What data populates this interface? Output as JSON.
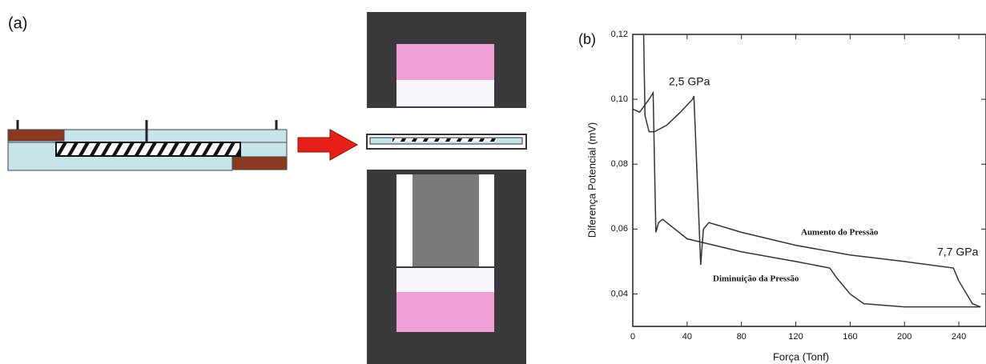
{
  "panel_a_label": "(a)",
  "chart_data": {
    "type": "line",
    "panel_label": "(b)",
    "x_label": "Força (Tonf)",
    "y_label": "Diferença Potencial (mV)",
    "xlim": [
      0,
      260
    ],
    "xticks": [
      0,
      40,
      80,
      120,
      160,
      200,
      240
    ],
    "ylim": [
      0.03,
      0.12
    ],
    "yticks": [
      {
        "value": 0.04,
        "label": "0,04"
      },
      {
        "value": 0.06,
        "label": "0,06"
      },
      {
        "value": 0.08,
        "label": "0,08"
      },
      {
        "value": 0.1,
        "label": "0,10"
      },
      {
        "value": 0.12,
        "label": "0,12"
      }
    ],
    "annotations": [
      "2,5 GPa",
      "7,7 GPa"
    ],
    "series": [
      {
        "name": "Aumento do Pressão",
        "color": "#333333",
        "x": [
          8,
          9,
          12,
          16,
          25,
          35,
          44,
          45,
          50,
          52,
          56,
          80,
          120,
          160,
          200,
          236,
          240,
          250,
          256
        ],
        "values": [
          0.12,
          0.095,
          0.09,
          0.09,
          0.092,
          0.096,
          0.1,
          0.101,
          0.049,
          0.06,
          0.062,
          0.059,
          0.055,
          0.052,
          0.05,
          0.048,
          0.044,
          0.037,
          0.036
        ]
      },
      {
        "name": "Diminuição da Pressão",
        "color": "#333333",
        "x": [
          256,
          200,
          170,
          160,
          150,
          145,
          120,
          80,
          40,
          22,
          19,
          17,
          16,
          15,
          12,
          5,
          0
        ],
        "values": [
          0.036,
          0.036,
          0.037,
          0.04,
          0.045,
          0.048,
          0.05,
          0.053,
          0.057,
          0.063,
          0.062,
          0.059,
          0.08,
          0.102,
          0.1,
          0.096,
          0.097
        ]
      }
    ]
  }
}
